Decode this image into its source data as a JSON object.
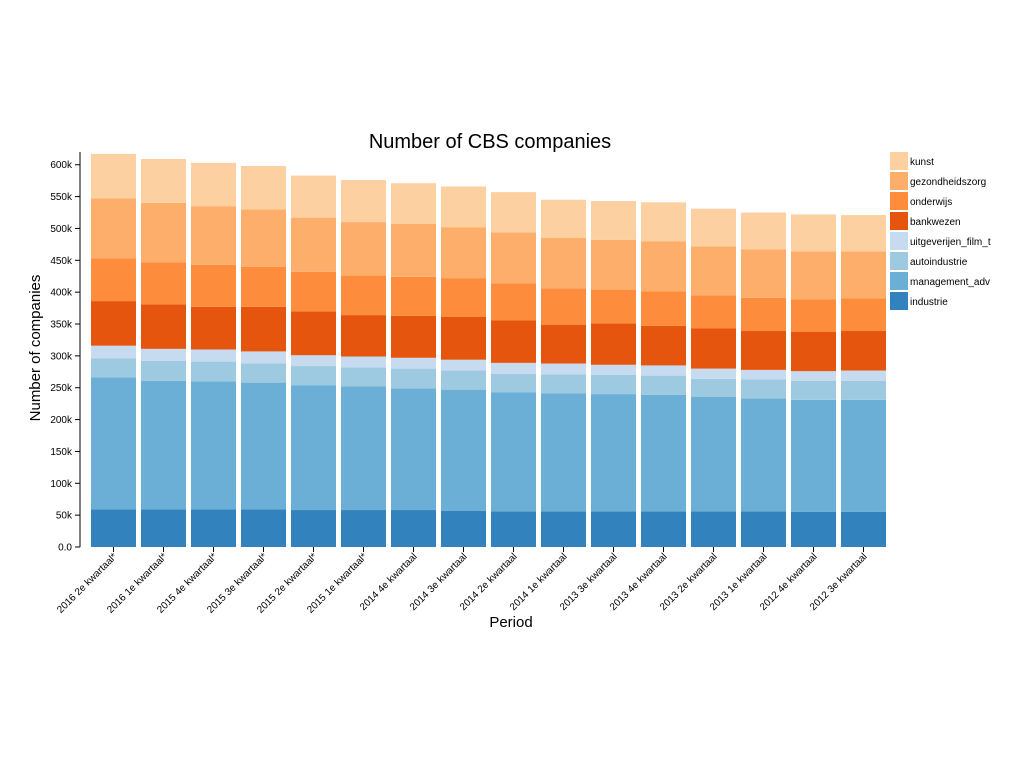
{
  "chart_data": {
    "type": "bar",
    "stacked": true,
    "title": "Number of CBS companies",
    "xlabel": "Period",
    "ylabel": "Number of companies",
    "ylim": [
      0,
      620000
    ],
    "yticks": [
      0,
      50000,
      100000,
      150000,
      200000,
      250000,
      300000,
      350000,
      400000,
      450000,
      500000,
      550000,
      600000
    ],
    "ytick_labels": [
      "0.0",
      "50k",
      "100k",
      "150k",
      "200k",
      "250k",
      "300k",
      "350k",
      "400k",
      "450k",
      "500k",
      "550k",
      "600k"
    ],
    "legend_position": "right",
    "categories": [
      "2016 2e kwartaal*",
      "2016 1e kwartaal*",
      "2015 4e kwartaal*",
      "2015 3e kwartaal*",
      "2015 2e kwartaal*",
      "2015 1e kwartaal*",
      "2014 4e kwartaal",
      "2014 3e kwartaal",
      "2014 2e kwartaal",
      "2014 1e kwartaal",
      "2013 3e kwartaal",
      "2013 4e kwartaal",
      "2013 2e kwartaal",
      "2013 1e kwartaal",
      "2012 4e kwartaal",
      "2012 3e kwartaal"
    ],
    "series": [
      {
        "name": "industrie",
        "color": "#3182bd",
        "values": [
          59000,
          59000,
          59000,
          59000,
          58000,
          58000,
          58000,
          57000,
          56000,
          56000,
          56000,
          56000,
          56000,
          56000,
          55000,
          55000
        ]
      },
      {
        "name": "management_adv",
        "color": "#6baed6",
        "values": [
          207000,
          202000,
          201000,
          199000,
          196000,
          194000,
          191000,
          190000,
          187000,
          185000,
          184000,
          183000,
          180000,
          177000,
          176000,
          176000
        ]
      },
      {
        "name": "autoindustrie",
        "color": "#9ecae1",
        "values": [
          30000,
          31000,
          31000,
          30000,
          30000,
          30000,
          31000,
          30000,
          29000,
          30000,
          30000,
          30000,
          28000,
          30000,
          30000,
          30000
        ]
      },
      {
        "name": "uitgeverijen_film_t",
        "color": "#c6dbef",
        "values": [
          20000,
          19000,
          19000,
          19000,
          17000,
          17000,
          17000,
          17000,
          17000,
          17000,
          16000,
          16000,
          16000,
          15000,
          15000,
          16000
        ]
      },
      {
        "name": "bankwezen",
        "color": "#e6550d",
        "values": [
          70000,
          70000,
          67000,
          70000,
          69000,
          65000,
          66000,
          67000,
          67000,
          61000,
          65000,
          62000,
          63000,
          61000,
          62000,
          62000
        ]
      },
      {
        "name": "onderwijs",
        "color": "#fd8d3c",
        "values": [
          67000,
          66000,
          66000,
          63000,
          62000,
          62000,
          61000,
          61000,
          58000,
          57000,
          53000,
          54000,
          52000,
          52000,
          51000,
          51000
        ]
      },
      {
        "name": "gezondheidszorg",
        "color": "#fdae6b",
        "values": [
          94000,
          93000,
          92000,
          90000,
          85000,
          84000,
          83000,
          80000,
          80000,
          79000,
          78000,
          79000,
          77000,
          76000,
          75000,
          74000
        ]
      },
      {
        "name": "kunst",
        "color": "#fdd0a2",
        "values": [
          70000,
          69000,
          68000,
          68000,
          66000,
          66000,
          64000,
          64000,
          63000,
          60000,
          61000,
          61000,
          59000,
          58000,
          58000,
          57000
        ]
      }
    ]
  }
}
